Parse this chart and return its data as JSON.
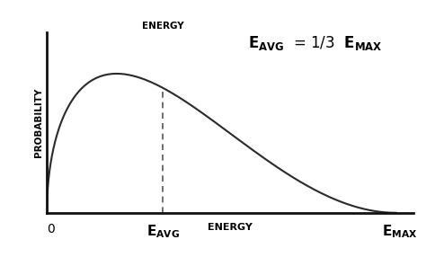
{
  "xlabel": "ENERGY",
  "ylabel": "PROBABILITY",
  "x_origin_label": "0",
  "dashed_line_label": "ENERGY",
  "e_avg": 0.333,
  "e_max": 1.0,
  "xlim": [
    0,
    1.05
  ],
  "ylim": [
    0,
    1.3
  ],
  "background_color": "#ffffff",
  "curve_color": "#2a2a2a",
  "dashed_color": "#555555",
  "curve_linewidth": 1.5,
  "dashed_linewidth": 1.2,
  "ylabel_fontsize": 7.5,
  "xlabel_fontsize": 8,
  "label_fontsize": 10,
  "annotation_fontsize": 12,
  "dashed_label_fontsize": 7.5
}
